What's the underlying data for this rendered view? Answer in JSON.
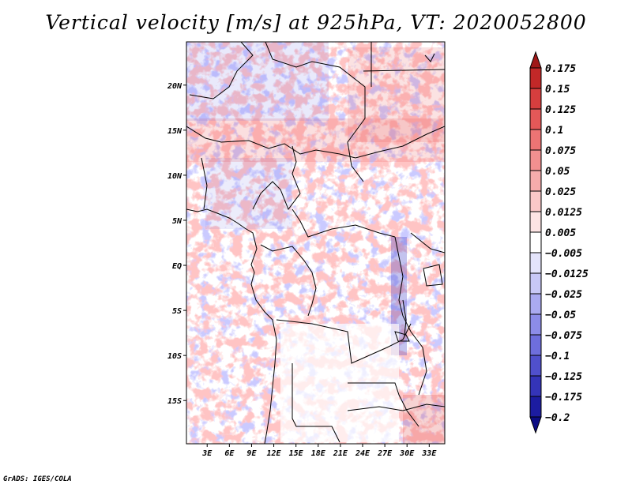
{
  "title": "Vertical velocity [m/s] at 925hPa, VT: 2020052800",
  "credit": "GrADS: IGES/COLA",
  "chart_data": {
    "type": "heatmap",
    "variable": "Vertical velocity",
    "units": "m/s",
    "level": "925hPa",
    "valid_time": "2020052800",
    "x_ticks": [
      {
        "value": 3,
        "label": "3E"
      },
      {
        "value": 6,
        "label": "6E"
      },
      {
        "value": 9,
        "label": "9E"
      },
      {
        "value": 12,
        "label": "12E"
      },
      {
        "value": 15,
        "label": "15E"
      },
      {
        "value": 18,
        "label": "18E"
      },
      {
        "value": 21,
        "label": "21E"
      },
      {
        "value": 24,
        "label": "24E"
      },
      {
        "value": 27,
        "label": "27E"
      },
      {
        "value": 30,
        "label": "30E"
      },
      {
        "value": 33,
        "label": "33E"
      }
    ],
    "y_ticks": [
      {
        "value": 20,
        "label": "20N"
      },
      {
        "value": 15,
        "label": "15N"
      },
      {
        "value": 10,
        "label": "10N"
      },
      {
        "value": 5,
        "label": "5N"
      },
      {
        "value": 0,
        "label": "EQ"
      },
      {
        "value": -5,
        "label": "5S"
      },
      {
        "value": -10,
        "label": "10S"
      },
      {
        "value": -15,
        "label": "15S"
      }
    ],
    "xlim": [
      0.2,
      35.1
    ],
    "ylim": [
      -19.8,
      24.8
    ],
    "colorbar": {
      "levels": [
        "0.175",
        "0.15",
        "0.125",
        "0.1",
        "0.075",
        "0.05",
        "0.025",
        "0.0125",
        "0.005",
        "-0.005",
        "-0.0125",
        "-0.025",
        "-0.05",
        "-0.075",
        "-0.1",
        "-0.125",
        "-0.175",
        "-0.2"
      ],
      "colors": [
        "#a01818",
        "#c22828",
        "#d63e3e",
        "#e45858",
        "#ec7474",
        "#f29090",
        "#f6acac",
        "#fac8c8",
        "#fde4e4",
        "#ffffff",
        "#e4e4fb",
        "#c8c8f6",
        "#aaaaf0",
        "#8c8ce8",
        "#6e6edc",
        "#5050cc",
        "#3434b8",
        "#1c1ca0",
        "#0c0c84"
      ]
    }
  }
}
